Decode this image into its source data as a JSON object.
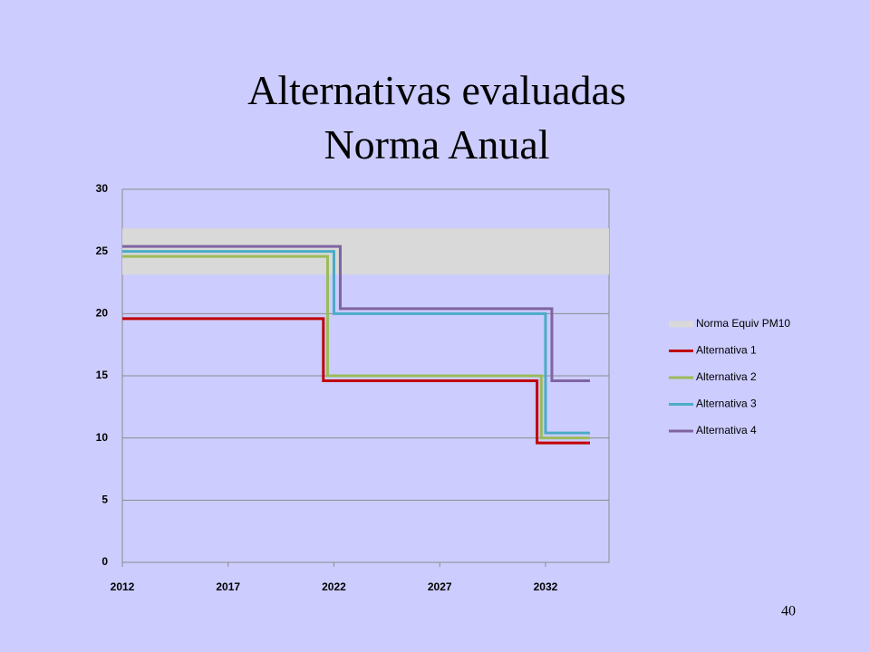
{
  "chart_data": {
    "type": "line",
    "title": "Alternativas evaluadas",
    "subtitle": "Norma Anual",
    "xlim": [
      2012,
      2035
    ],
    "xticks": [
      2012,
      2017,
      2022,
      2027,
      2032
    ],
    "ylim": [
      0,
      30
    ],
    "yticks": [
      0,
      5,
      10,
      15,
      20,
      25,
      30
    ],
    "grid": true,
    "legend": "right",
    "series": [
      {
        "name": "Norma  Equiv PM10",
        "color": "#d9d9d9",
        "band": true,
        "x": [
          2012,
          2035
        ],
        "values": [
          25,
          25
        ]
      },
      {
        "name": "Alternativa 1",
        "color": "#c00000",
        "x": [
          2012,
          2021.5,
          2021.5,
          2031.6,
          2031.6,
          2034.1
        ],
        "values": [
          19.6,
          19.6,
          14.6,
          14.6,
          9.6,
          9.6
        ]
      },
      {
        "name": "Alternativa 2",
        "color": "#9bbb59",
        "x": [
          2012,
          2021.7,
          2021.7,
          2031.8,
          2031.8,
          2034.1
        ],
        "values": [
          24.6,
          24.6,
          15,
          15,
          10,
          10
        ]
      },
      {
        "name": "Alternativa 3",
        "color": "#4bacc6",
        "x": [
          2012,
          2022,
          2022,
          2032,
          2032,
          2034.1
        ],
        "values": [
          25,
          25,
          20,
          20,
          10.4,
          10.4
        ]
      },
      {
        "name": "Alternativa 4",
        "color": "#8064a2",
        "x": [
          2012,
          2022.3,
          2022.3,
          2032.3,
          2032.3,
          2034.1
        ],
        "values": [
          25.4,
          25.4,
          20.4,
          20.4,
          14.6,
          14.6
        ]
      }
    ]
  },
  "slide_number": 40
}
